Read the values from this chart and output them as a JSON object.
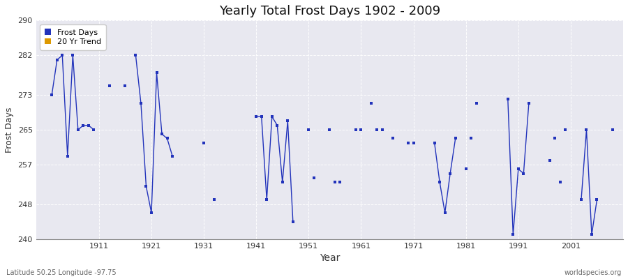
{
  "title": "Yearly Total Frost Days 1902 - 2009",
  "ylabel": "Frost Days",
  "xlabel": "Year",
  "lat_label": "Latitude 50.25 Longitude -97.75",
  "source_label": "worldspecies.org",
  "ylim": [
    240,
    290
  ],
  "xlim": [
    1899,
    2011
  ],
  "yticks": [
    240,
    248,
    257,
    265,
    273,
    282,
    290
  ],
  "xticks": [
    1911,
    1921,
    1931,
    1941,
    1951,
    1961,
    1971,
    1981,
    1991,
    2001
  ],
  "line_color": "#2233bb",
  "bg_color": "#e8e8f0",
  "fig_bg": "#ffffff",
  "legend_items": [
    {
      "label": "Frost Days",
      "color": "#2233bb"
    },
    {
      "label": "20 Yr Trend",
      "color": "#dd9900"
    }
  ],
  "frost_data": [
    [
      1902,
      273
    ],
    [
      1903,
      281
    ],
    [
      1904,
      282
    ],
    [
      1905,
      259
    ],
    [
      1906,
      282
    ],
    [
      1907,
      265
    ],
    [
      1908,
      266
    ],
    [
      1909,
      266
    ],
    [
      1910,
      265
    ],
    [
      1913,
      275
    ],
    [
      1916,
      275
    ],
    [
      1918,
      282
    ],
    [
      1919,
      271
    ],
    [
      1920,
      252
    ],
    [
      1921,
      246
    ],
    [
      1922,
      278
    ],
    [
      1923,
      264
    ],
    [
      1924,
      263
    ],
    [
      1925,
      259
    ],
    [
      1931,
      262
    ],
    [
      1933,
      249
    ],
    [
      1941,
      268
    ],
    [
      1942,
      268
    ],
    [
      1943,
      249
    ],
    [
      1944,
      268
    ],
    [
      1945,
      266
    ],
    [
      1946,
      253
    ],
    [
      1947,
      267
    ],
    [
      1948,
      244
    ],
    [
      1951,
      265
    ],
    [
      1952,
      254
    ],
    [
      1955,
      265
    ],
    [
      1956,
      253
    ],
    [
      1957,
      253
    ],
    [
      1960,
      265
    ],
    [
      1961,
      265
    ],
    [
      1963,
      271
    ],
    [
      1964,
      265
    ],
    [
      1965,
      265
    ],
    [
      1967,
      263
    ],
    [
      1970,
      262
    ],
    [
      1971,
      262
    ],
    [
      1975,
      262
    ],
    [
      1976,
      253
    ],
    [
      1977,
      246
    ],
    [
      1978,
      255
    ],
    [
      1979,
      263
    ],
    [
      1981,
      256
    ],
    [
      1982,
      263
    ],
    [
      1983,
      271
    ],
    [
      1989,
      272
    ],
    [
      1990,
      241
    ],
    [
      1991,
      256
    ],
    [
      1992,
      255
    ],
    [
      1993,
      271
    ],
    [
      1997,
      258
    ],
    [
      1998,
      263
    ],
    [
      1999,
      253
    ],
    [
      2000,
      265
    ],
    [
      2003,
      249
    ],
    [
      2004,
      265
    ],
    [
      2005,
      241
    ],
    [
      2006,
      249
    ],
    [
      2009,
      265
    ]
  ],
  "connected_segments": [
    [
      1902,
      1903,
      1904,
      1905,
      1906,
      1907,
      1908,
      1909,
      1910
    ],
    [
      1918,
      1919,
      1920,
      1921,
      1922,
      1923,
      1924,
      1925
    ],
    [
      1941,
      1942,
      1943,
      1944,
      1945,
      1946,
      1947,
      1948
    ],
    [
      1975,
      1976,
      1977,
      1978,
      1979
    ],
    [
      1989,
      1990,
      1991,
      1992,
      1993
    ],
    [
      2003,
      2004,
      2005,
      2006
    ]
  ]
}
